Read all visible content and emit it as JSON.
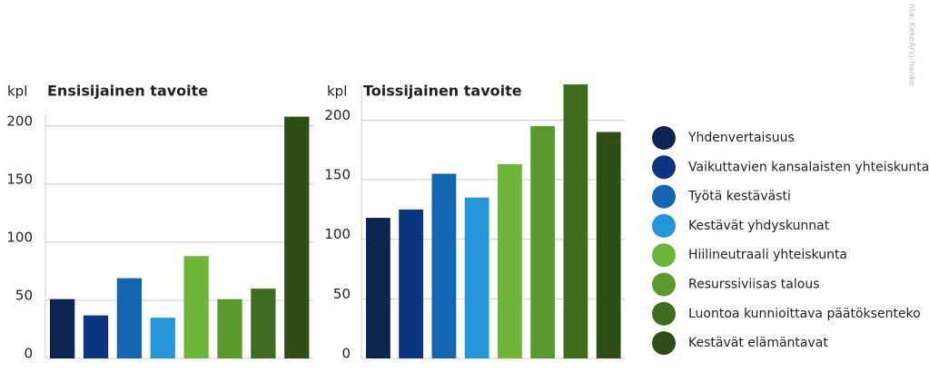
{
  "legend": {
    "categories": [
      "Yhdenvertaisuus",
      "Vaikuttavien kansalaisten yhteiskunta",
      "Työtä kestävästi",
      "Kestävät yhdyskunnat",
      "Hiilineutraali yhteiskunta",
      "Resurssiviisas talous",
      "Luontoa kunnioittava päätöksenteko",
      "Kestävät elämäntavat"
    ],
    "colors": [
      "#0c2550",
      "#0d3580",
      "#1566b0",
      "#2595d6",
      "#6fb43b",
      "#5a992e",
      "#3f6c1f",
      "#2e4e15"
    ]
  },
  "source": "nta: KekeArvi-hanke",
  "chart_data": [
    {
      "type": "bar",
      "title": "Ensisijainen tavoite",
      "y_label": "kpl",
      "values": [
        51,
        37,
        69,
        35,
        88,
        51,
        60,
        208
      ],
      "ylim": [
        0,
        210
      ],
      "yticks": [
        0,
        50,
        100,
        150,
        200
      ],
      "grid": true
    },
    {
      "type": "bar",
      "title": "Toissijainen tavoite",
      "y_label": "kpl",
      "values": [
        118,
        125,
        155,
        135,
        163,
        195,
        230,
        190
      ],
      "ylim": [
        0,
        230
      ],
      "yticks": [
        0,
        50,
        100,
        150,
        200
      ],
      "grid": true
    }
  ]
}
